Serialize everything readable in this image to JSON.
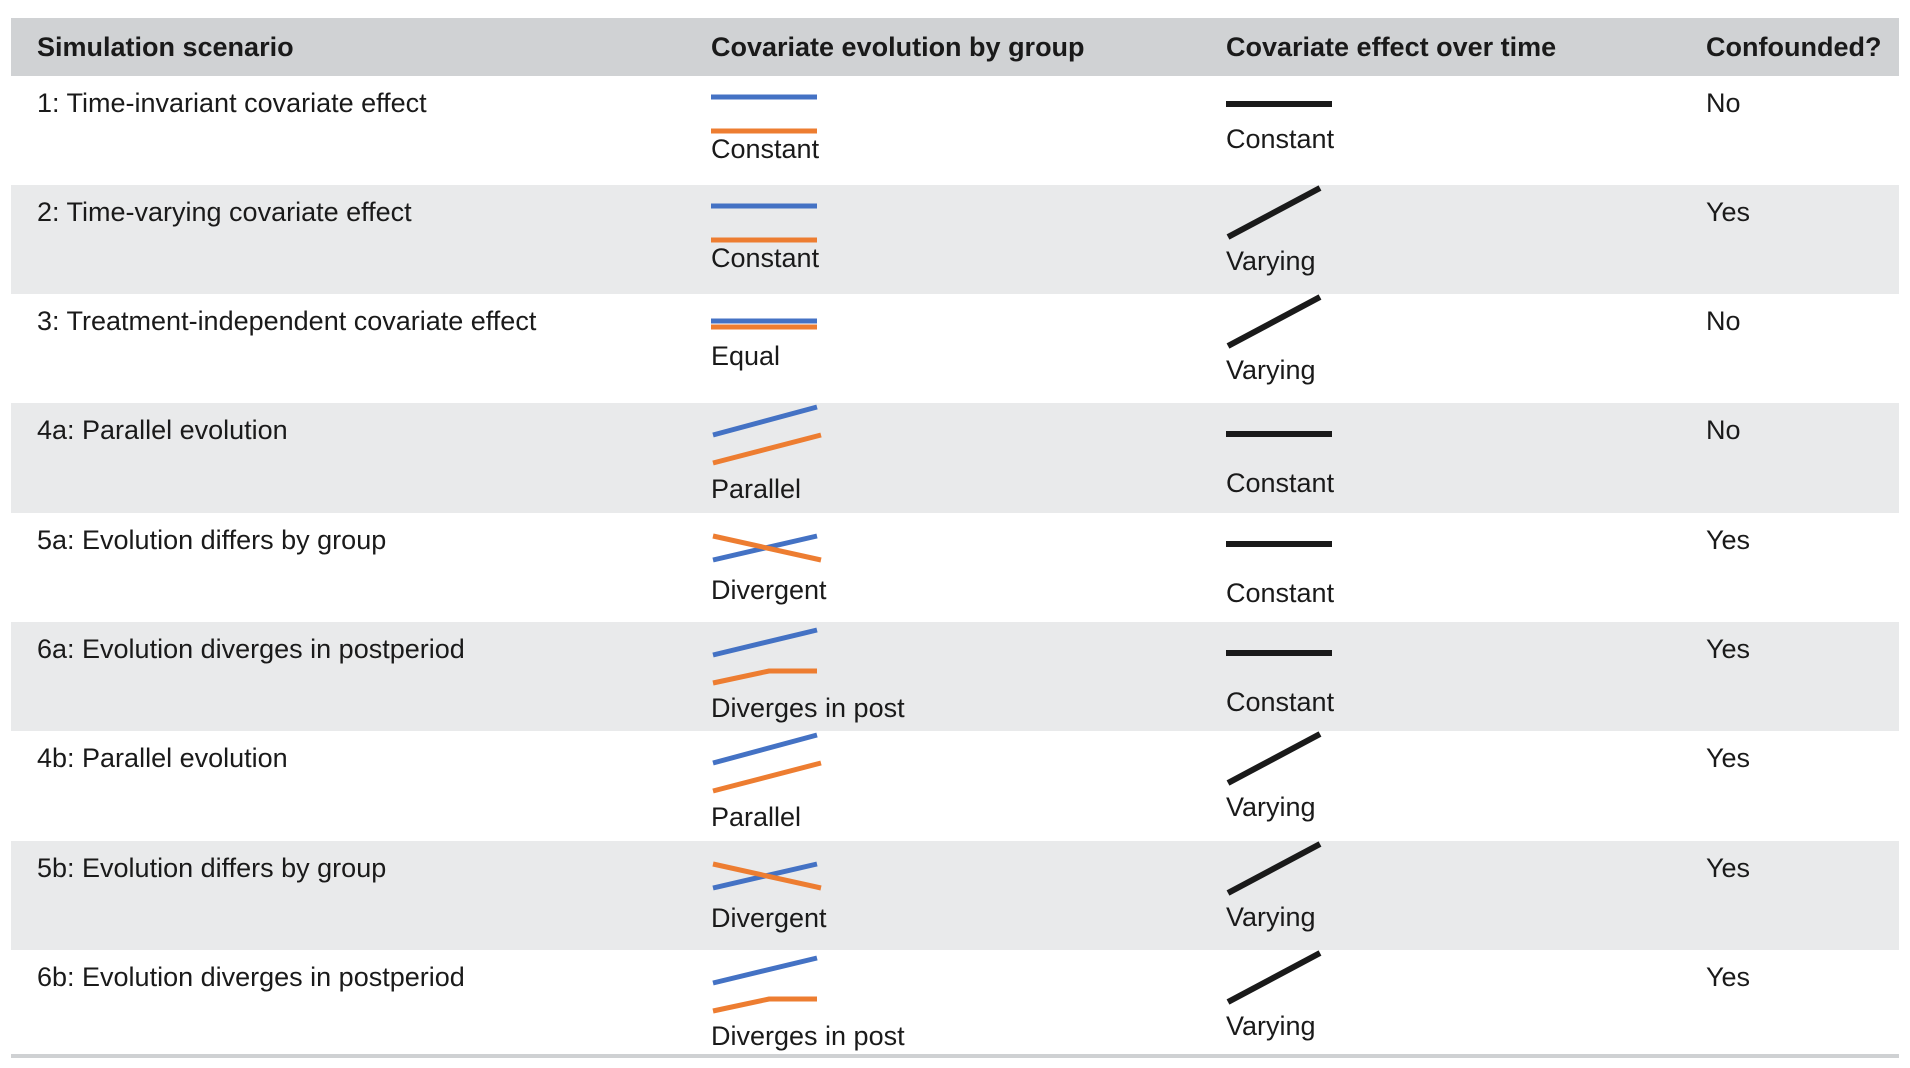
{
  "header": {
    "scenario": "Simulation scenario",
    "evolution": "Covariate evolution by group",
    "effect": "Covariate effect over time",
    "confounded": "Confounded?"
  },
  "colors": {
    "group_a": "#4472c4",
    "group_b": "#ed7d31",
    "effect_line": "#1a1a1a",
    "header_bg": "#d0d2d4",
    "shaded_row_bg": "#e9eaeb"
  },
  "rows": [
    {
      "scenario": "1: Time-invariant covariate effect",
      "evolution_icon": "constant",
      "evolution": "Constant",
      "effect_icon": "constant",
      "effect": "Constant",
      "confounded": "No"
    },
    {
      "scenario": "2: Time-varying covariate effect",
      "evolution_icon": "constant",
      "evolution": "Constant",
      "effect_icon": "varying",
      "effect": "Varying",
      "confounded": "Yes"
    },
    {
      "scenario": "3: Treatment-independent covariate effect",
      "evolution_icon": "equal",
      "evolution": "Equal",
      "effect_icon": "varying",
      "effect": "Varying",
      "confounded": "No"
    },
    {
      "scenario": "4a: Parallel evolution",
      "evolution_icon": "parallel",
      "evolution": "Parallel",
      "effect_icon": "constant",
      "effect": "Constant",
      "confounded": "No"
    },
    {
      "scenario": "5a: Evolution differs by group",
      "evolution_icon": "divergent",
      "evolution": "Divergent",
      "effect_icon": "constant",
      "effect": "Constant",
      "confounded": "Yes"
    },
    {
      "scenario": "6a: Evolution diverges in postperiod",
      "evolution_icon": "diverges-post",
      "evolution": "Diverges in post",
      "effect_icon": "constant",
      "effect": "Constant",
      "confounded": "Yes"
    },
    {
      "scenario": "4b: Parallel evolution",
      "evolution_icon": "parallel",
      "evolution": "Parallel",
      "effect_icon": "varying",
      "effect": "Varying",
      "confounded": "Yes"
    },
    {
      "scenario": "5b: Evolution differs by group",
      "evolution_icon": "divergent",
      "evolution": "Divergent",
      "effect_icon": "varying",
      "effect": "Varying",
      "confounded": "Yes"
    },
    {
      "scenario": "6b: Evolution diverges in postperiod",
      "evolution_icon": "diverges-post",
      "evolution": "Diverges in post",
      "effect_icon": "varying",
      "effect": "Varying",
      "confounded": "Yes"
    }
  ]
}
